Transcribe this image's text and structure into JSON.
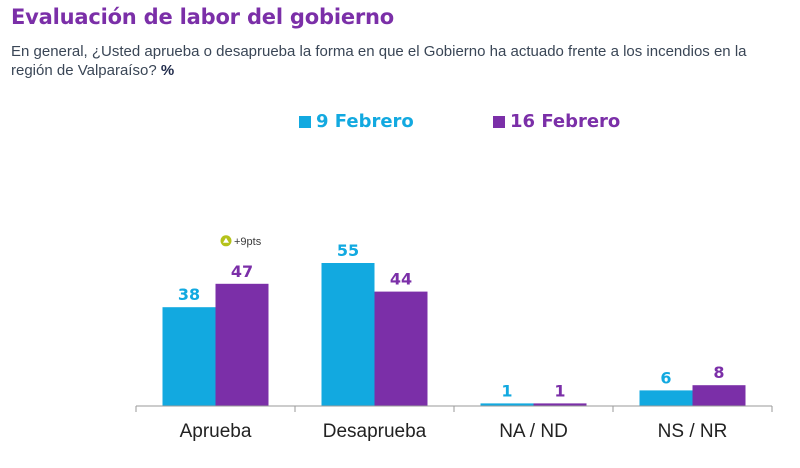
{
  "title": "Evaluación de labor del gobierno",
  "subtitle": "En general, ¿Usted aprueba o desaprueba la forma en que el Gobierno ha actuado frente a los incendios en la región de Valparaíso?",
  "unit": "%",
  "colors": {
    "series1": "#12A9E0",
    "series2": "#7B2FA8",
    "title": "#7B2FA8",
    "annotation": "#B5C21A"
  },
  "chart_data": {
    "type": "bar",
    "categories": [
      "Aprueba",
      "Desaprueba",
      "NA / ND",
      "NS / NR"
    ],
    "series": [
      {
        "name": "9 Febrero",
        "values": [
          38,
          55,
          1,
          6
        ]
      },
      {
        "name": "16 Febrero",
        "values": [
          47,
          44,
          1,
          8
        ]
      }
    ],
    "ylim": [
      0,
      55
    ],
    "grid": false,
    "legend": "top-center",
    "annotations": [
      {
        "category": "Aprueba",
        "series": "16 Febrero",
        "text": "+9pts",
        "icon": "up-arrow-icon"
      }
    ]
  }
}
